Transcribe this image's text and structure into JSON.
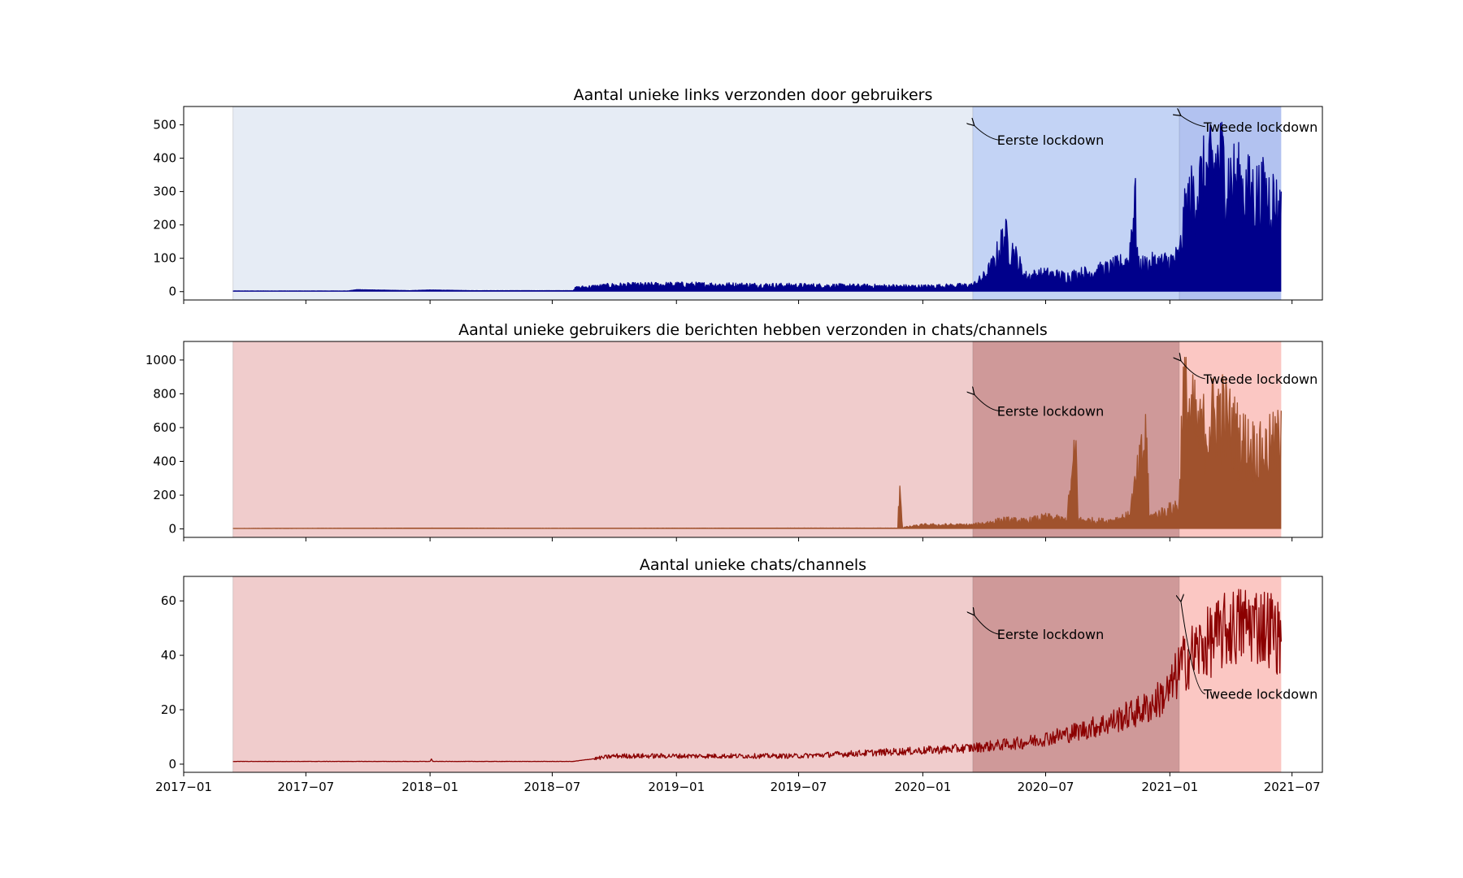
{
  "chart_data": [
    {
      "type": "line",
      "title": "Aantal unieke links verzonden door gebruikers",
      "x_range": [
        "2017-01-01",
        "2021-08-15"
      ],
      "ylim": [
        -25,
        555
      ],
      "y_ticks": [
        0,
        100,
        200,
        300,
        400,
        500
      ],
      "line_color": "#00008b",
      "filled": true,
      "periods": [
        {
          "start": "2017-03-15",
          "end": "2020-03-15",
          "color": "#e6ecf5"
        },
        {
          "start": "2020-03-15",
          "end": "2021-01-15",
          "color": "#c3d3f5"
        },
        {
          "start": "2021-01-15",
          "end": "2021-06-15",
          "color": "#b2c2f0"
        }
      ],
      "annotations": [
        {
          "text": "Eerste lockdown",
          "point": [
            "2020-03-15",
            500
          ],
          "text_pos": [
            "2020-04-20",
            440
          ]
        },
        {
          "text": "Tweede lockdown",
          "point": [
            "2021-01-15",
            530
          ],
          "text_pos": [
            "2021-02-20",
            480
          ]
        }
      ],
      "series": [
        {
          "x": "2017-03-15",
          "y": 2
        },
        {
          "x": "2017-09-01",
          "y": 2
        },
        {
          "x": "2017-09-15",
          "y": 6
        },
        {
          "x": "2017-12-01",
          "y": 3
        },
        {
          "x": "2018-01-01",
          "y": 5
        },
        {
          "x": "2018-03-01",
          "y": 3
        },
        {
          "x": "2018-08-01",
          "y": 3
        },
        {
          "x": "2018-08-05",
          "y": 15
        },
        {
          "x": "2018-10-01",
          "y": 25
        },
        {
          "x": "2019-01-01",
          "y": 28
        },
        {
          "x": "2019-07-01",
          "y": 24
        },
        {
          "x": "2020-01-01",
          "y": 20
        },
        {
          "x": "2020-03-15",
          "y": 25
        },
        {
          "x": "2020-04-01",
          "y": 60
        },
        {
          "x": "2020-04-15",
          "y": 110
        },
        {
          "x": "2020-05-01",
          "y": 220
        },
        {
          "x": "2020-05-15",
          "y": 150
        },
        {
          "x": "2020-06-01",
          "y": 60
        },
        {
          "x": "2020-07-01",
          "y": 70
        },
        {
          "x": "2020-08-01",
          "y": 60
        },
        {
          "x": "2020-09-01",
          "y": 75
        },
        {
          "x": "2020-10-01",
          "y": 90
        },
        {
          "x": "2020-11-01",
          "y": 120
        },
        {
          "x": "2020-11-10",
          "y": 385
        },
        {
          "x": "2020-11-15",
          "y": 100
        },
        {
          "x": "2020-12-01",
          "y": 110
        },
        {
          "x": "2021-01-01",
          "y": 120
        },
        {
          "x": "2021-01-15",
          "y": 140
        },
        {
          "x": "2021-01-25",
          "y": 330
        },
        {
          "x": "2021-02-15",
          "y": 430
        },
        {
          "x": "2021-03-01",
          "y": 470
        },
        {
          "x": "2021-03-15",
          "y": 530
        },
        {
          "x": "2021-04-01",
          "y": 450
        },
        {
          "x": "2021-05-01",
          "y": 390
        },
        {
          "x": "2021-06-01",
          "y": 380
        },
        {
          "x": "2021-06-15",
          "y": 300
        }
      ]
    },
    {
      "type": "line",
      "title": "Aantal unieke gebruikers die berichten hebben verzonden in chats/channels",
      "x_range": [
        "2017-01-01",
        "2021-08-15"
      ],
      "ylim": [
        -50,
        1110
      ],
      "y_ticks": [
        0,
        200,
        400,
        600,
        800,
        1000
      ],
      "line_color": "#a0522d",
      "filled": true,
      "periods": [
        {
          "start": "2017-03-15",
          "end": "2020-03-15",
          "color": "#f0cccc"
        },
        {
          "start": "2020-03-15",
          "end": "2021-01-15",
          "color": "#cf9999"
        },
        {
          "start": "2021-01-15",
          "end": "2021-06-15",
          "color": "#fbc7c3"
        }
      ],
      "annotations": [
        {
          "text": "Eerste lockdown",
          "point": [
            "2020-03-15",
            800
          ],
          "text_pos": [
            "2020-04-20",
            670
          ]
        },
        {
          "text": "Tweede lockdown",
          "point": [
            "2021-01-15",
            1000
          ],
          "text_pos": [
            "2021-02-20",
            860
          ]
        }
      ],
      "series": [
        {
          "x": "2017-03-15",
          "y": 3
        },
        {
          "x": "2018-01-01",
          "y": 5
        },
        {
          "x": "2018-07-01",
          "y": 4
        },
        {
          "x": "2019-07-01",
          "y": 5
        },
        {
          "x": "2019-11-25",
          "y": 5
        },
        {
          "x": "2019-11-28",
          "y": 390
        },
        {
          "x": "2019-12-02",
          "y": 10
        },
        {
          "x": "2020-01-01",
          "y": 30
        },
        {
          "x": "2020-03-15",
          "y": 30
        },
        {
          "x": "2020-05-01",
          "y": 70
        },
        {
          "x": "2020-06-01",
          "y": 60
        },
        {
          "x": "2020-07-01",
          "y": 90
        },
        {
          "x": "2020-08-01",
          "y": 70
        },
        {
          "x": "2020-08-15",
          "y": 640
        },
        {
          "x": "2020-08-18",
          "y": 70
        },
        {
          "x": "2020-10-01",
          "y": 60
        },
        {
          "x": "2020-11-01",
          "y": 100
        },
        {
          "x": "2020-11-28",
          "y": 750
        },
        {
          "x": "2020-12-01",
          "y": 90
        },
        {
          "x": "2021-01-01",
          "y": 150
        },
        {
          "x": "2021-01-15",
          "y": 200
        },
        {
          "x": "2021-01-20",
          "y": 1050
        },
        {
          "x": "2021-02-15",
          "y": 750
        },
        {
          "x": "2021-03-15",
          "y": 950
        },
        {
          "x": "2021-04-15",
          "y": 700
        },
        {
          "x": "2021-05-15",
          "y": 600
        },
        {
          "x": "2021-06-15",
          "y": 700
        }
      ]
    },
    {
      "type": "line",
      "title": "Aantal unieke chats/channels",
      "x_range": [
        "2017-01-01",
        "2021-08-15"
      ],
      "ylim": [
        -3,
        69
      ],
      "y_ticks": [
        0,
        20,
        40,
        60
      ],
      "x_ticks": [
        "2017−01",
        "2017−07",
        "2018−01",
        "2018−07",
        "2019−01",
        "2019−07",
        "2020−01",
        "2020−07",
        "2021−01",
        "2021−07"
      ],
      "line_color": "#8b0000",
      "filled": false,
      "periods": [
        {
          "start": "2017-03-15",
          "end": "2020-03-15",
          "color": "#f0cccc"
        },
        {
          "start": "2020-03-15",
          "end": "2021-01-15",
          "color": "#cf9999"
        },
        {
          "start": "2021-01-15",
          "end": "2021-06-15",
          "color": "#fbc7c3"
        }
      ],
      "annotations": [
        {
          "text": "Eerste lockdown",
          "point": [
            "2020-03-15",
            55
          ],
          "text_pos": [
            "2020-04-20",
            46
          ]
        },
        {
          "text": "Tweede lockdown",
          "point": [
            "2021-01-15",
            60
          ],
          "text_pos": [
            "2021-02-20",
            24
          ]
        }
      ],
      "series": [
        {
          "x": "2017-03-15",
          "y": 1
        },
        {
          "x": "2018-01-01",
          "y": 1
        },
        {
          "x": "2018-01-03",
          "y": 2
        },
        {
          "x": "2018-01-05",
          "y": 1
        },
        {
          "x": "2018-08-01",
          "y": 1
        },
        {
          "x": "2018-09-01",
          "y": 2
        },
        {
          "x": "2018-10-01",
          "y": 3
        },
        {
          "x": "2019-01-01",
          "y": 3
        },
        {
          "x": "2019-07-01",
          "y": 3
        },
        {
          "x": "2019-10-01",
          "y": 4
        },
        {
          "x": "2020-01-01",
          "y": 5
        },
        {
          "x": "2020-03-15",
          "y": 6
        },
        {
          "x": "2020-06-01",
          "y": 8
        },
        {
          "x": "2020-08-01",
          "y": 11
        },
        {
          "x": "2020-10-01",
          "y": 15
        },
        {
          "x": "2020-12-01",
          "y": 21
        },
        {
          "x": "2021-01-01",
          "y": 27
        },
        {
          "x": "2021-01-15",
          "y": 35
        },
        {
          "x": "2021-02-01",
          "y": 40
        },
        {
          "x": "2021-03-01",
          "y": 45
        },
        {
          "x": "2021-04-01",
          "y": 50
        },
        {
          "x": "2021-05-01",
          "y": 52
        },
        {
          "x": "2021-06-01",
          "y": 50
        },
        {
          "x": "2021-06-15",
          "y": 45
        }
      ]
    }
  ]
}
